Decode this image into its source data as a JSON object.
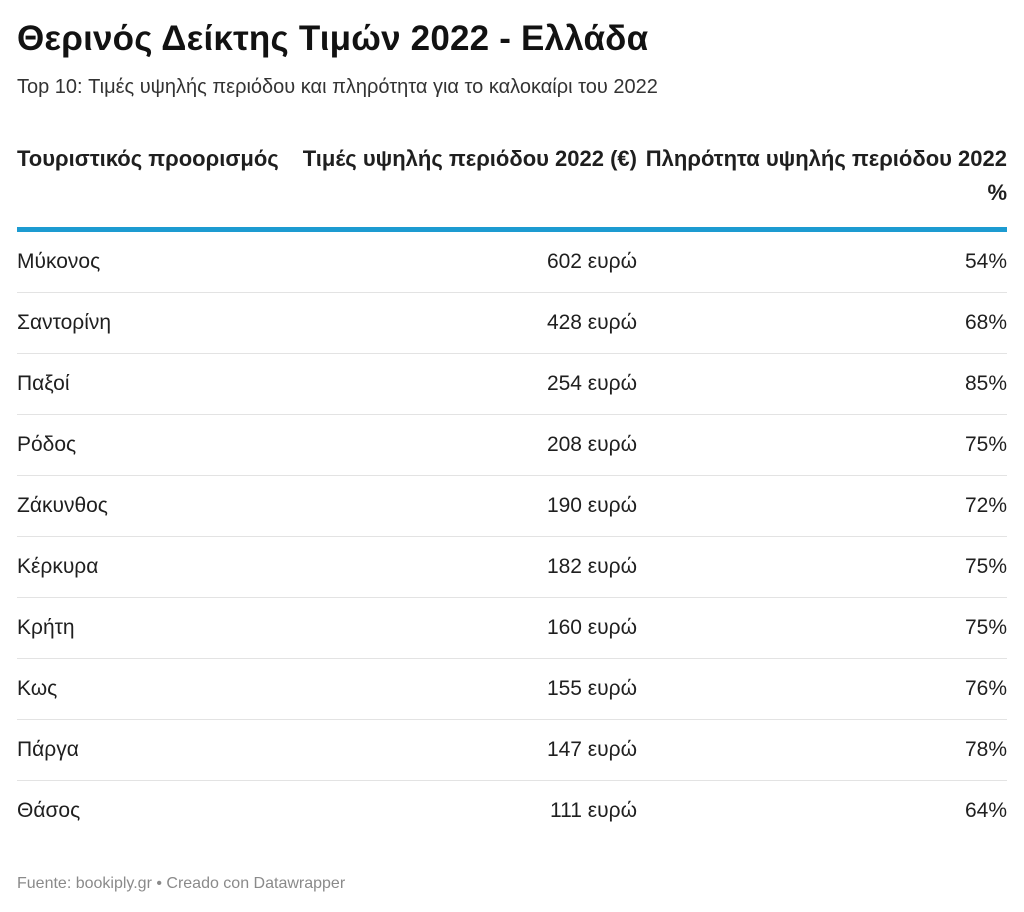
{
  "header": {
    "title": "Θερινός Δείκτης Τιμών 2022 - Ελλάδα",
    "subtitle": "Top 10: Τιμές υψηλής περιόδου και πληρότητα για το καλοκαίρι του 2022"
  },
  "chart_data": {
    "type": "table",
    "columns": [
      "Τουριστικός προορισμός",
      "Τιμές υψηλής περιόδου 2022 (€)",
      "Πληρότητα υψηλής περιόδου 2022 %"
    ],
    "rows": [
      {
        "destination": "Μύκονος",
        "price": "602 ευρώ",
        "occupancy": "54%"
      },
      {
        "destination": "Σαντορίνη",
        "price": "428 ευρώ",
        "occupancy": "68%"
      },
      {
        "destination": "Παξοί",
        "price": "254 ευρώ",
        "occupancy": "85%"
      },
      {
        "destination": "Ρόδος",
        "price": "208 ευρώ",
        "occupancy": "75%"
      },
      {
        "destination": "Ζάκυνθος",
        "price": "190 ευρώ",
        "occupancy": "72%"
      },
      {
        "destination": "Κέρκυρα",
        "price": "182 ευρώ",
        "occupancy": "75%"
      },
      {
        "destination": "Κρήτη",
        "price": "160 ευρώ",
        "occupancy": "75%"
      },
      {
        "destination": "Κως",
        "price": "155 ευρώ",
        "occupancy": "76%"
      },
      {
        "destination": "Πάργα",
        "price": "147 ευρώ",
        "occupancy": "78%"
      },
      {
        "destination": "Θάσος",
        "price": "111 ευρώ",
        "occupancy": "64%"
      }
    ]
  },
  "footer": {
    "source": "Fuente: bookiply.gr • Creado con Datawrapper"
  },
  "colors": {
    "header_rule": "#1d9bd1",
    "row_divider": "#e3e3e3",
    "footer_text": "#8a8a8a"
  }
}
